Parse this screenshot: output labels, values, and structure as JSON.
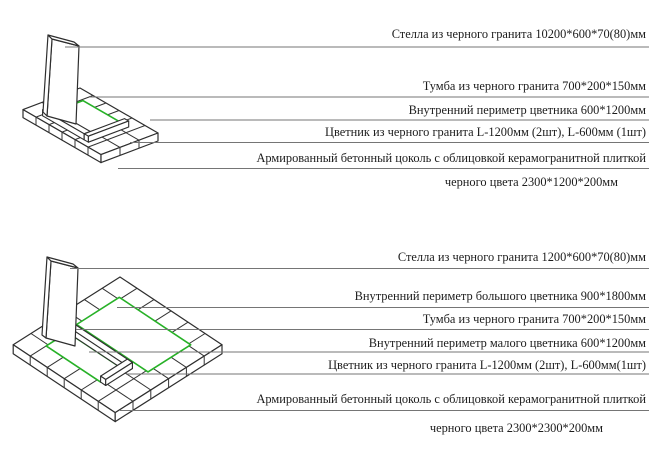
{
  "page": {
    "background": "#ffffff",
    "description_labels_language": "ru"
  },
  "colors": {
    "outline": "#2e2e2e",
    "grid": "#333333",
    "leader_line": "#757575",
    "flowerbed_green": "#27b127",
    "text": "#1d1d1d",
    "fill": "#ffffff"
  },
  "sections": [
    {
      "name": "monument-single-flowerbed",
      "labels": [
        "Стелла из черного гранита 10200*600*70(80)мм",
        "Тумба из черного гранита 700*200*150мм",
        "Внутренний периметр цветника 600*1200мм",
        "Цветник из черного гранита L-1200мм (2шт), L-600мм (1шт)",
        "Армированный бетонный цоколь с облицовкой керамогранитной плиткой",
        "черного цвета 2300*1200*200мм"
      ]
    },
    {
      "name": "monument-double-flowerbed",
      "labels": [
        "Стелла из черного гранита 1200*600*70(80)мм",
        "Внутренний периметр большого цветника 900*1800мм",
        "Тумба из черного гранита 700*200*150мм",
        "Внутренний периметр малого цветника 600*1200мм",
        "Цветник из черного гранита L-1200мм (2шт), L-600мм(1шт)",
        "Армированный бетонный цоколь с облицовкой керамогранитной плиткой",
        "черного цвета 2300*2300*200мм"
      ]
    }
  ]
}
